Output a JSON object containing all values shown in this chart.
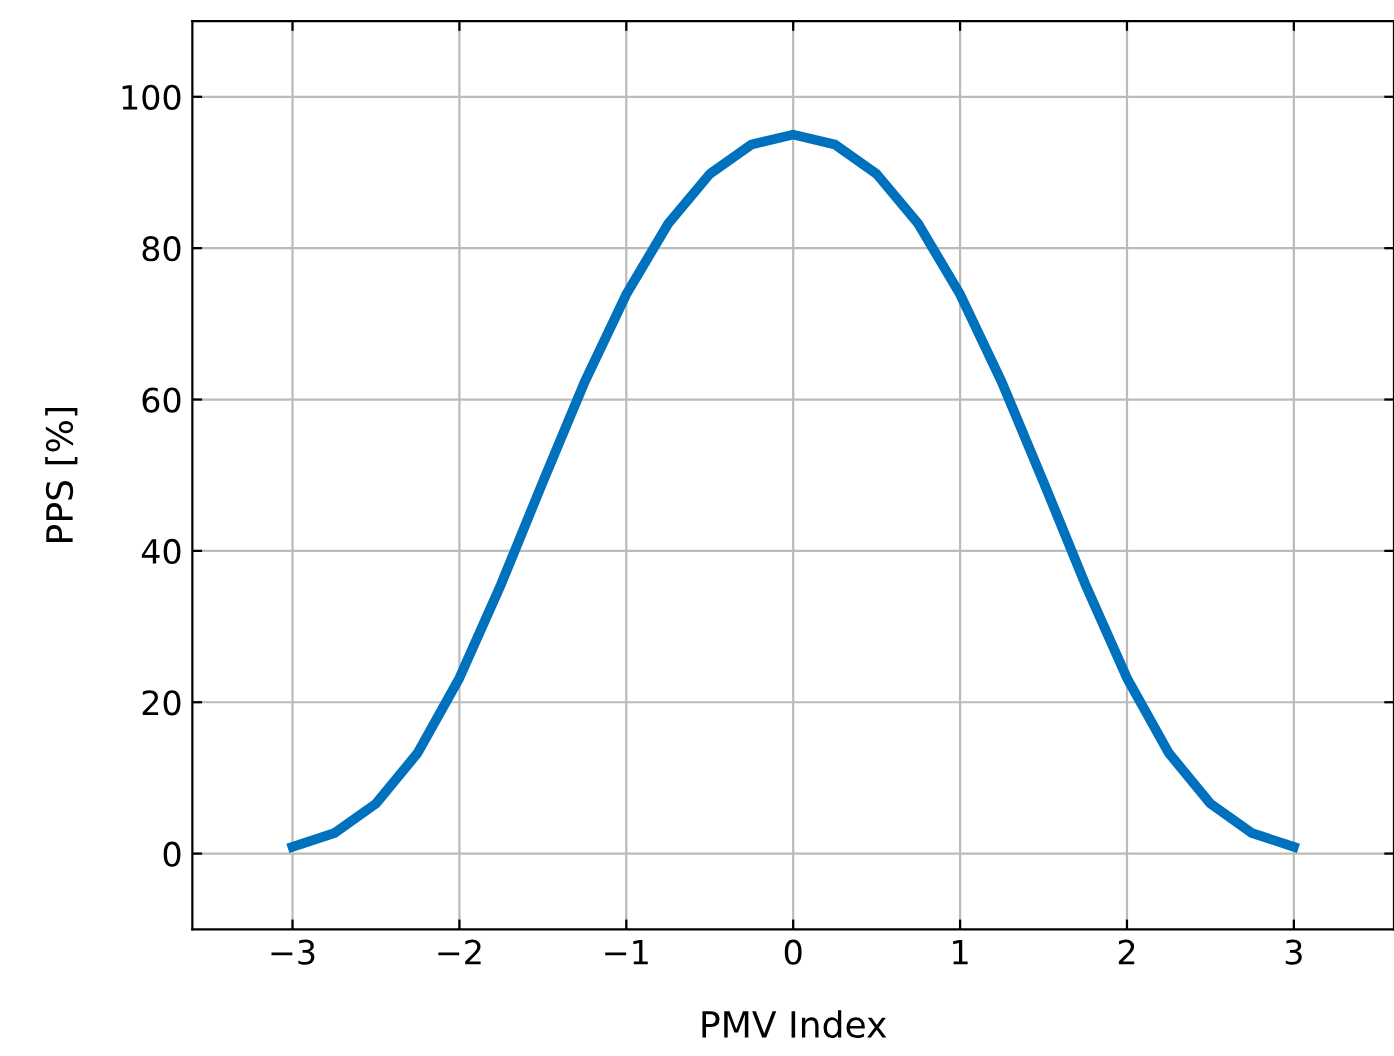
{
  "chart_data": {
    "type": "line",
    "xlabel": "PMV Index",
    "ylabel": "PPS [%]",
    "x": [
      -3,
      -2.75,
      -2.5,
      -2.25,
      -2,
      -1.75,
      -1.5,
      -1.25,
      -1,
      -0.75,
      -0.5,
      -0.25,
      0,
      0.25,
      0.5,
      0.75,
      1,
      1.25,
      1.5,
      1.75,
      2,
      2.25,
      2.5,
      2.75,
      3
    ],
    "series": [
      {
        "color": "#0072bd",
        "values": [
          0.9,
          2.7,
          6.6,
          13.3,
          23.2,
          35.6,
          49.1,
          62.3,
          73.9,
          83.2,
          89.8,
          93.7,
          95,
          93.7,
          89.8,
          83.2,
          73.9,
          62.3,
          49.1,
          35.6,
          23.2,
          13.3,
          6.6,
          2.7,
          0.9
        ]
      }
    ],
    "xlim": [
      -3.6,
      3.6
    ],
    "ylim": [
      -10,
      110
    ],
    "xticks": [
      {
        "value": -3,
        "label": "−3"
      },
      {
        "value": -2,
        "label": "−2"
      },
      {
        "value": -1,
        "label": "−1"
      },
      0,
      1,
      2,
      3
    ],
    "yticks": [
      0,
      20,
      40,
      60,
      80,
      100
    ],
    "grid": true,
    "marker": "none",
    "line_style": "solid"
  }
}
